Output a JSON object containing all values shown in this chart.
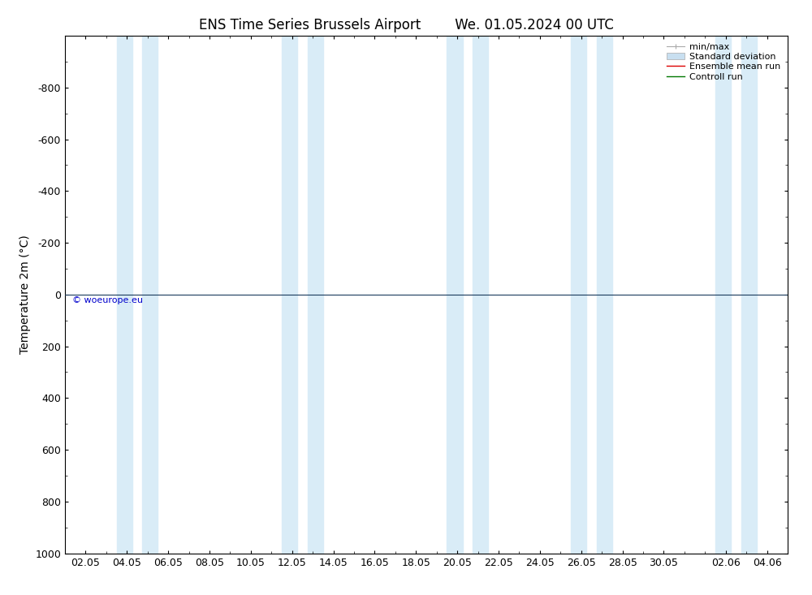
{
  "title_left": "ENS Time Series Brussels Airport",
  "title_right": "We. 01.05.2024 00 UTC",
  "ylabel": "Temperature 2m (°C)",
  "xlabel": "",
  "ylim": [
    -1000,
    1000
  ],
  "yticks": [
    -800,
    -600,
    -400,
    -200,
    0,
    200,
    400,
    600,
    800,
    1000
  ],
  "xtick_labels": [
    "02.05",
    "04.05",
    "06.05",
    "08.05",
    "10.05",
    "12.05",
    "14.05",
    "16.05",
    "18.05",
    "20.05",
    "22.05",
    "24.05",
    "26.05",
    "28.05",
    "30.05",
    "02.06",
    "04.06"
  ],
  "xtick_positions": [
    2,
    4,
    6,
    8,
    10,
    12,
    14,
    16,
    18,
    20,
    22,
    24,
    26,
    28,
    30,
    33,
    35
  ],
  "xlim": [
    1,
    36
  ],
  "shading_bands": [
    [
      3.5,
      4.25
    ],
    [
      4.75,
      5.5
    ],
    [
      11.5,
      12.25
    ],
    [
      12.75,
      13.5
    ],
    [
      19.5,
      20.25
    ],
    [
      20.75,
      21.5
    ],
    [
      25.5,
      26.25
    ],
    [
      26.75,
      27.5
    ],
    [
      32.5,
      33.25
    ],
    [
      33.75,
      34.5
    ]
  ],
  "shading_color": "#d9ecf7",
  "bg_color": "#ffffff",
  "line_y0_color": "#1a3a5c",
  "line_y0_width": 0.8,
  "copyright_text": "© woeurope.eu",
  "copyright_color": "#0000cc",
  "legend_items": [
    "min/max",
    "Standard deviation",
    "Ensemble mean run",
    "Controll run"
  ],
  "legend_colors": [
    "#aaaaaa",
    "#c8dff0",
    "#dd0000",
    "#007700"
  ],
  "title_fontsize": 12,
  "axis_fontsize": 10,
  "tick_fontsize": 9,
  "legend_fontsize": 8
}
